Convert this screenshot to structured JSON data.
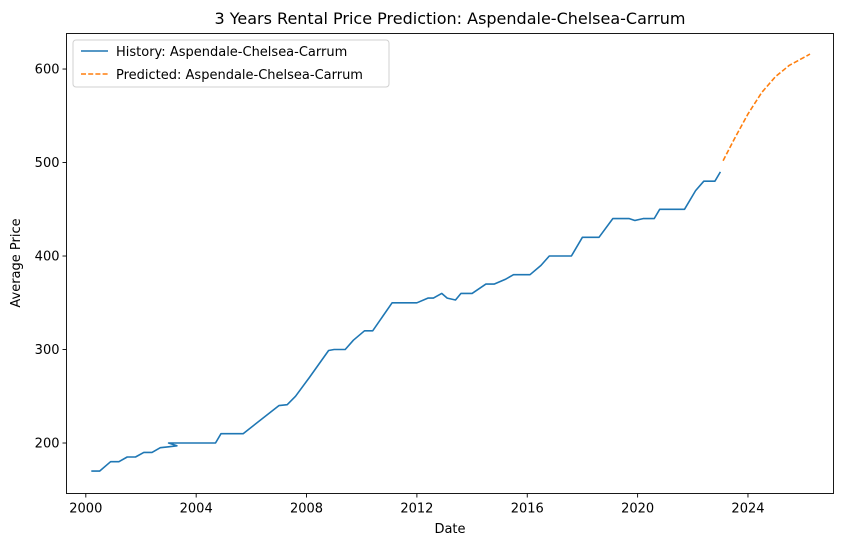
{
  "chart_data": {
    "type": "line",
    "title": "3 Years Rental Price Prediction: Aspendale-Chelsea-Carrum",
    "xlabel": "Date",
    "ylabel": "Average Price",
    "xlim": [
      1999.3,
      2027.1
    ],
    "ylim": [
      146,
      638
    ],
    "x_ticks": [
      2000,
      2004,
      2008,
      2012,
      2016,
      2020,
      2024
    ],
    "y_ticks": [
      200,
      300,
      400,
      500,
      600
    ],
    "grid": false,
    "legend_position": "top-left",
    "series": [
      {
        "name": "History: Aspendale-Chelsea-Carrum",
        "color": "#1f77b4",
        "style": "solid",
        "x": [
          2000.2,
          2000.5,
          2000.9,
          2001.2,
          2001.5,
          2001.8,
          2002.1,
          2002.4,
          2002.7,
          2003.0,
          2003.3,
          2003.0,
          2003.6,
          2004.0,
          2004.4,
          2004.7,
          2004.9,
          2005.3,
          2005.7,
          2007.0,
          2007.3,
          2007.6,
          2008.1,
          2008.8,
          2009.0,
          2009.4,
          2009.7,
          2010.1,
          2010.4,
          2011.1,
          2011.5,
          2012.0,
          2012.4,
          2012.6,
          2012.9,
          2013.1,
          2013.4,
          2013.6,
          2014.0,
          2014.5,
          2014.8,
          2015.2,
          2015.5,
          2015.8,
          2016.1,
          2016.5,
          2016.8,
          2017.3,
          2017.6,
          2018.0,
          2018.3,
          2018.6,
          2019.1,
          2019.5,
          2019.7,
          2019.9,
          2020.2,
          2020.6,
          2020.8,
          2021.1,
          2021.4,
          2021.7,
          2022.1,
          2022.4,
          2022.8,
          2023.0
        ],
        "y": [
          170,
          170,
          180,
          180,
          185,
          185,
          190,
          190,
          195,
          196,
          197,
          200,
          200,
          200,
          200,
          200,
          210,
          210,
          210,
          240,
          241,
          250,
          270,
          299,
          300,
          300,
          310,
          320,
          320,
          350,
          350,
          350,
          355,
          355,
          360,
          355,
          353,
          360,
          360,
          370,
          370,
          375,
          380,
          380,
          380,
          390,
          400,
          400,
          400,
          420,
          420,
          420,
          440,
          440,
          440,
          438,
          440,
          440,
          450,
          450,
          450,
          450,
          470,
          480,
          480,
          490
        ]
      },
      {
        "name": "Predicted: Aspendale-Chelsea-Carrum",
        "color": "#ff7f0e",
        "style": "dashed",
        "x": [
          2023.1,
          2023.5,
          2024.0,
          2024.5,
          2025.0,
          2025.5,
          2026.0,
          2026.25
        ],
        "y": [
          502,
          525,
          552,
          575,
          592,
          604,
          612,
          616
        ]
      }
    ]
  }
}
